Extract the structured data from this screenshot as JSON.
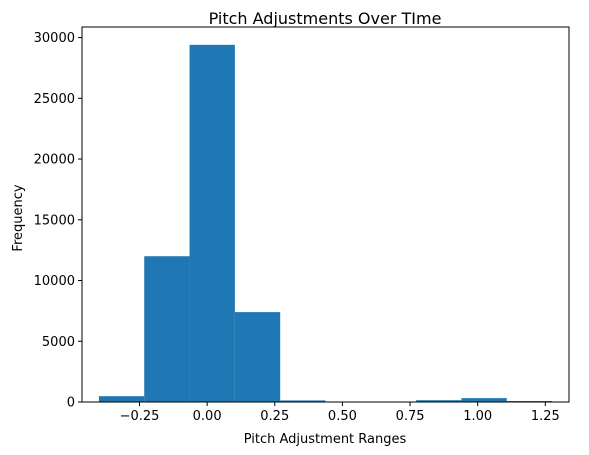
{
  "chart_data": {
    "type": "bar",
    "title": "Pitch Adjustments Over TIme",
    "xlabel": "Pitch Adjustment Ranges",
    "ylabel": "Frequency",
    "bin_edges": [
      -0.4,
      -0.2325,
      -0.065,
      0.1025,
      0.27,
      0.4375,
      0.605,
      0.7725,
      0.94,
      1.1075,
      1.275
    ],
    "values": [
      480,
      12000,
      29400,
      7400,
      130,
      20,
      10,
      150,
      320,
      80
    ],
    "xlim": [
      -0.4625,
      1.3375
    ],
    "ylim": [
      0,
      30870
    ],
    "xticks": [
      -0.25,
      0.0,
      0.25,
      0.5,
      0.75,
      1.0,
      1.25
    ],
    "xtick_labels": [
      "−0.25",
      "0.00",
      "0.25",
      "0.50",
      "0.75",
      "1.00",
      "1.25"
    ],
    "yticks": [
      0,
      5000,
      10000,
      15000,
      20000,
      25000,
      30000
    ],
    "ytick_labels": [
      "0",
      "5000",
      "10000",
      "15000",
      "20000",
      "25000",
      "30000"
    ],
    "bar_color": "#1f77b4",
    "grid": false,
    "legend": "none"
  }
}
